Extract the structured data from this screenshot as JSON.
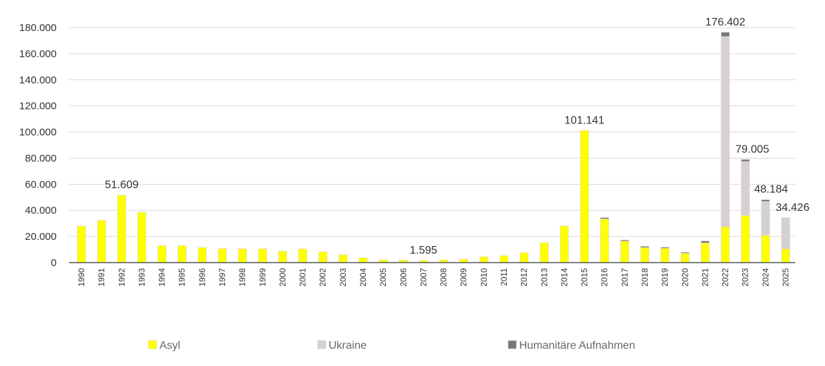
{
  "chart_data": {
    "type": "bar",
    "stacked": true,
    "title": "",
    "xlabel": "",
    "ylabel": "",
    "ylim": [
      0,
      180000
    ],
    "yticks": [
      0,
      20000,
      40000,
      60000,
      80000,
      100000,
      120000,
      140000,
      160000,
      180000
    ],
    "ytick_labels": [
      "0",
      "20.000",
      "40.000",
      "60.000",
      "80.000",
      "100.000",
      "120.000",
      "140.000",
      "160.000",
      "180.000"
    ],
    "grid": true,
    "legend_position": "bottom",
    "categories": [
      "1990",
      "1991",
      "1992",
      "1993",
      "1994",
      "1995",
      "1996",
      "1997",
      "1998",
      "1999",
      "2000",
      "2001",
      "2002",
      "2003",
      "2004",
      "2005",
      "2006",
      "2007",
      "2008",
      "2009",
      "2010",
      "2011",
      "2012",
      "2013",
      "2014",
      "2015",
      "2016",
      "2017",
      "2018",
      "2019",
      "2020",
      "2021",
      "2022",
      "2023",
      "2024",
      "2025"
    ],
    "series": [
      {
        "name": "Asyl",
        "color": "#FFFF00",
        "values": [
          28000,
          32300,
          51609,
          38500,
          13000,
          13000,
          11600,
          10700,
          10600,
          10600,
          8800,
          10500,
          8300,
          6000,
          3800,
          2100,
          1900,
          1595,
          2100,
          2700,
          4500,
          5300,
          7600,
          15200,
          28100,
          101141,
          33500,
          16500,
          11600,
          11000,
          7200,
          15100,
          27500,
          36000,
          21000,
          10500
        ]
      },
      {
        "name": "Ukraine",
        "color": "#D6D0D0",
        "values": [
          0,
          0,
          0,
          0,
          0,
          0,
          0,
          0,
          0,
          0,
          0,
          0,
          0,
          0,
          0,
          0,
          0,
          0,
          0,
          0,
          0,
          0,
          0,
          0,
          0,
          0,
          0,
          0,
          0,
          0,
          0,
          0,
          145700,
          41500,
          25900,
          23926
        ]
      },
      {
        "name": "Humanitäre Aufnahmen",
        "color": "#7A7575",
        "values": [
          0,
          0,
          0,
          0,
          0,
          0,
          0,
          0,
          0,
          0,
          0,
          0,
          0,
          0,
          0,
          0,
          0,
          0,
          0,
          0,
          0,
          0,
          0,
          0,
          0,
          0,
          1000,
          800,
          900,
          800,
          700,
          1500,
          3202,
          1505,
          1284,
          0
        ]
      }
    ],
    "annotations": [
      {
        "category": "1992",
        "text": "51.609"
      },
      {
        "category": "2007",
        "text": "1.595"
      },
      {
        "category": "2015",
        "text": "101.141"
      },
      {
        "category": "2022",
        "text": "176.402"
      },
      {
        "category": "2023",
        "text": "79.005"
      },
      {
        "category": "2024",
        "text": "48.184"
      },
      {
        "category": "2025",
        "text": "34.426"
      }
    ]
  }
}
